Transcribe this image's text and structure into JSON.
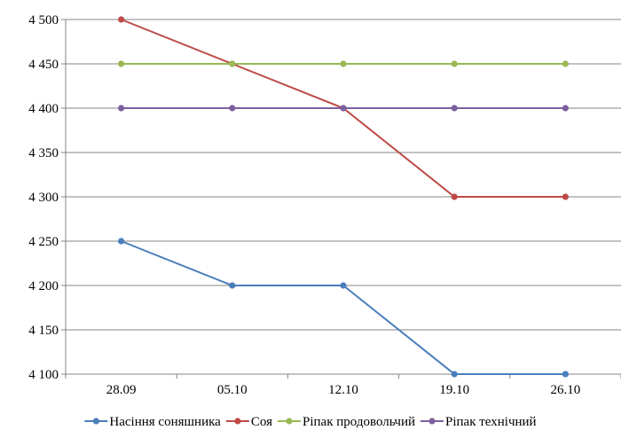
{
  "chart_data": {
    "type": "line",
    "title": "",
    "xlabel": "",
    "ylabel": "",
    "categories": [
      "28.09",
      "05.10",
      "12.10",
      "19.10",
      "26.10"
    ],
    "ylim": [
      4100,
      4500
    ],
    "ytick_step": 50,
    "y_ticks": [
      "4 100",
      "4 150",
      "4 200",
      "4 250",
      "4 300",
      "4 350",
      "4 400",
      "4 450",
      "4 500"
    ],
    "grid": "horizontal",
    "legend_position": "bottom",
    "series": [
      {
        "name": "Насіння соняшника",
        "color": "#4a7ebb",
        "values": [
          4250,
          4200,
          4200,
          4100,
          4100
        ]
      },
      {
        "name": "Соя",
        "color": "#be4b48",
        "values": [
          4500,
          4450,
          4400,
          4300,
          4300
        ]
      },
      {
        "name": "Ріпак продовольчий",
        "color": "#98b954",
        "values": [
          4450,
          4450,
          4450,
          4450,
          4450
        ]
      },
      {
        "name": "Ріпак технічний",
        "color": "#7d60a0",
        "values": [
          4400,
          4400,
          4400,
          4400,
          4400
        ]
      }
    ]
  }
}
